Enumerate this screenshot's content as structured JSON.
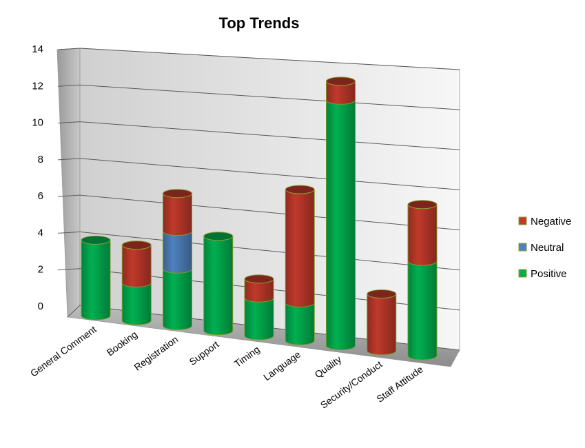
{
  "chart_data": {
    "type": "bar",
    "stacked": true,
    "title": "Top Trends",
    "categories": [
      "General Comment",
      "Booking",
      "Registration",
      "Support",
      "Timing",
      "Language",
      "Quality",
      "Security/Conduct",
      "Staff Attitude"
    ],
    "series": [
      {
        "name": "Positive",
        "color": "#00b050",
        "values": [
          4,
          2,
          3,
          5,
          2,
          2,
          13,
          0,
          5
        ]
      },
      {
        "name": "Neutral",
        "color": "#4f81bd",
        "values": [
          0,
          0,
          2,
          0,
          0,
          0,
          0,
          0,
          0
        ]
      },
      {
        "name": "Negative",
        "color": "#c0392b",
        "values": [
          0,
          2,
          2,
          0,
          1,
          6,
          1,
          3,
          3
        ]
      }
    ],
    "yticks": [
      "0",
      "2",
      "4",
      "6",
      "8",
      "10",
      "12",
      "14"
    ],
    "ylim": [
      0,
      14
    ],
    "grid": true,
    "legend": {
      "position": "right",
      "order": [
        "Negative",
        "Neutral",
        "Positive"
      ]
    }
  }
}
